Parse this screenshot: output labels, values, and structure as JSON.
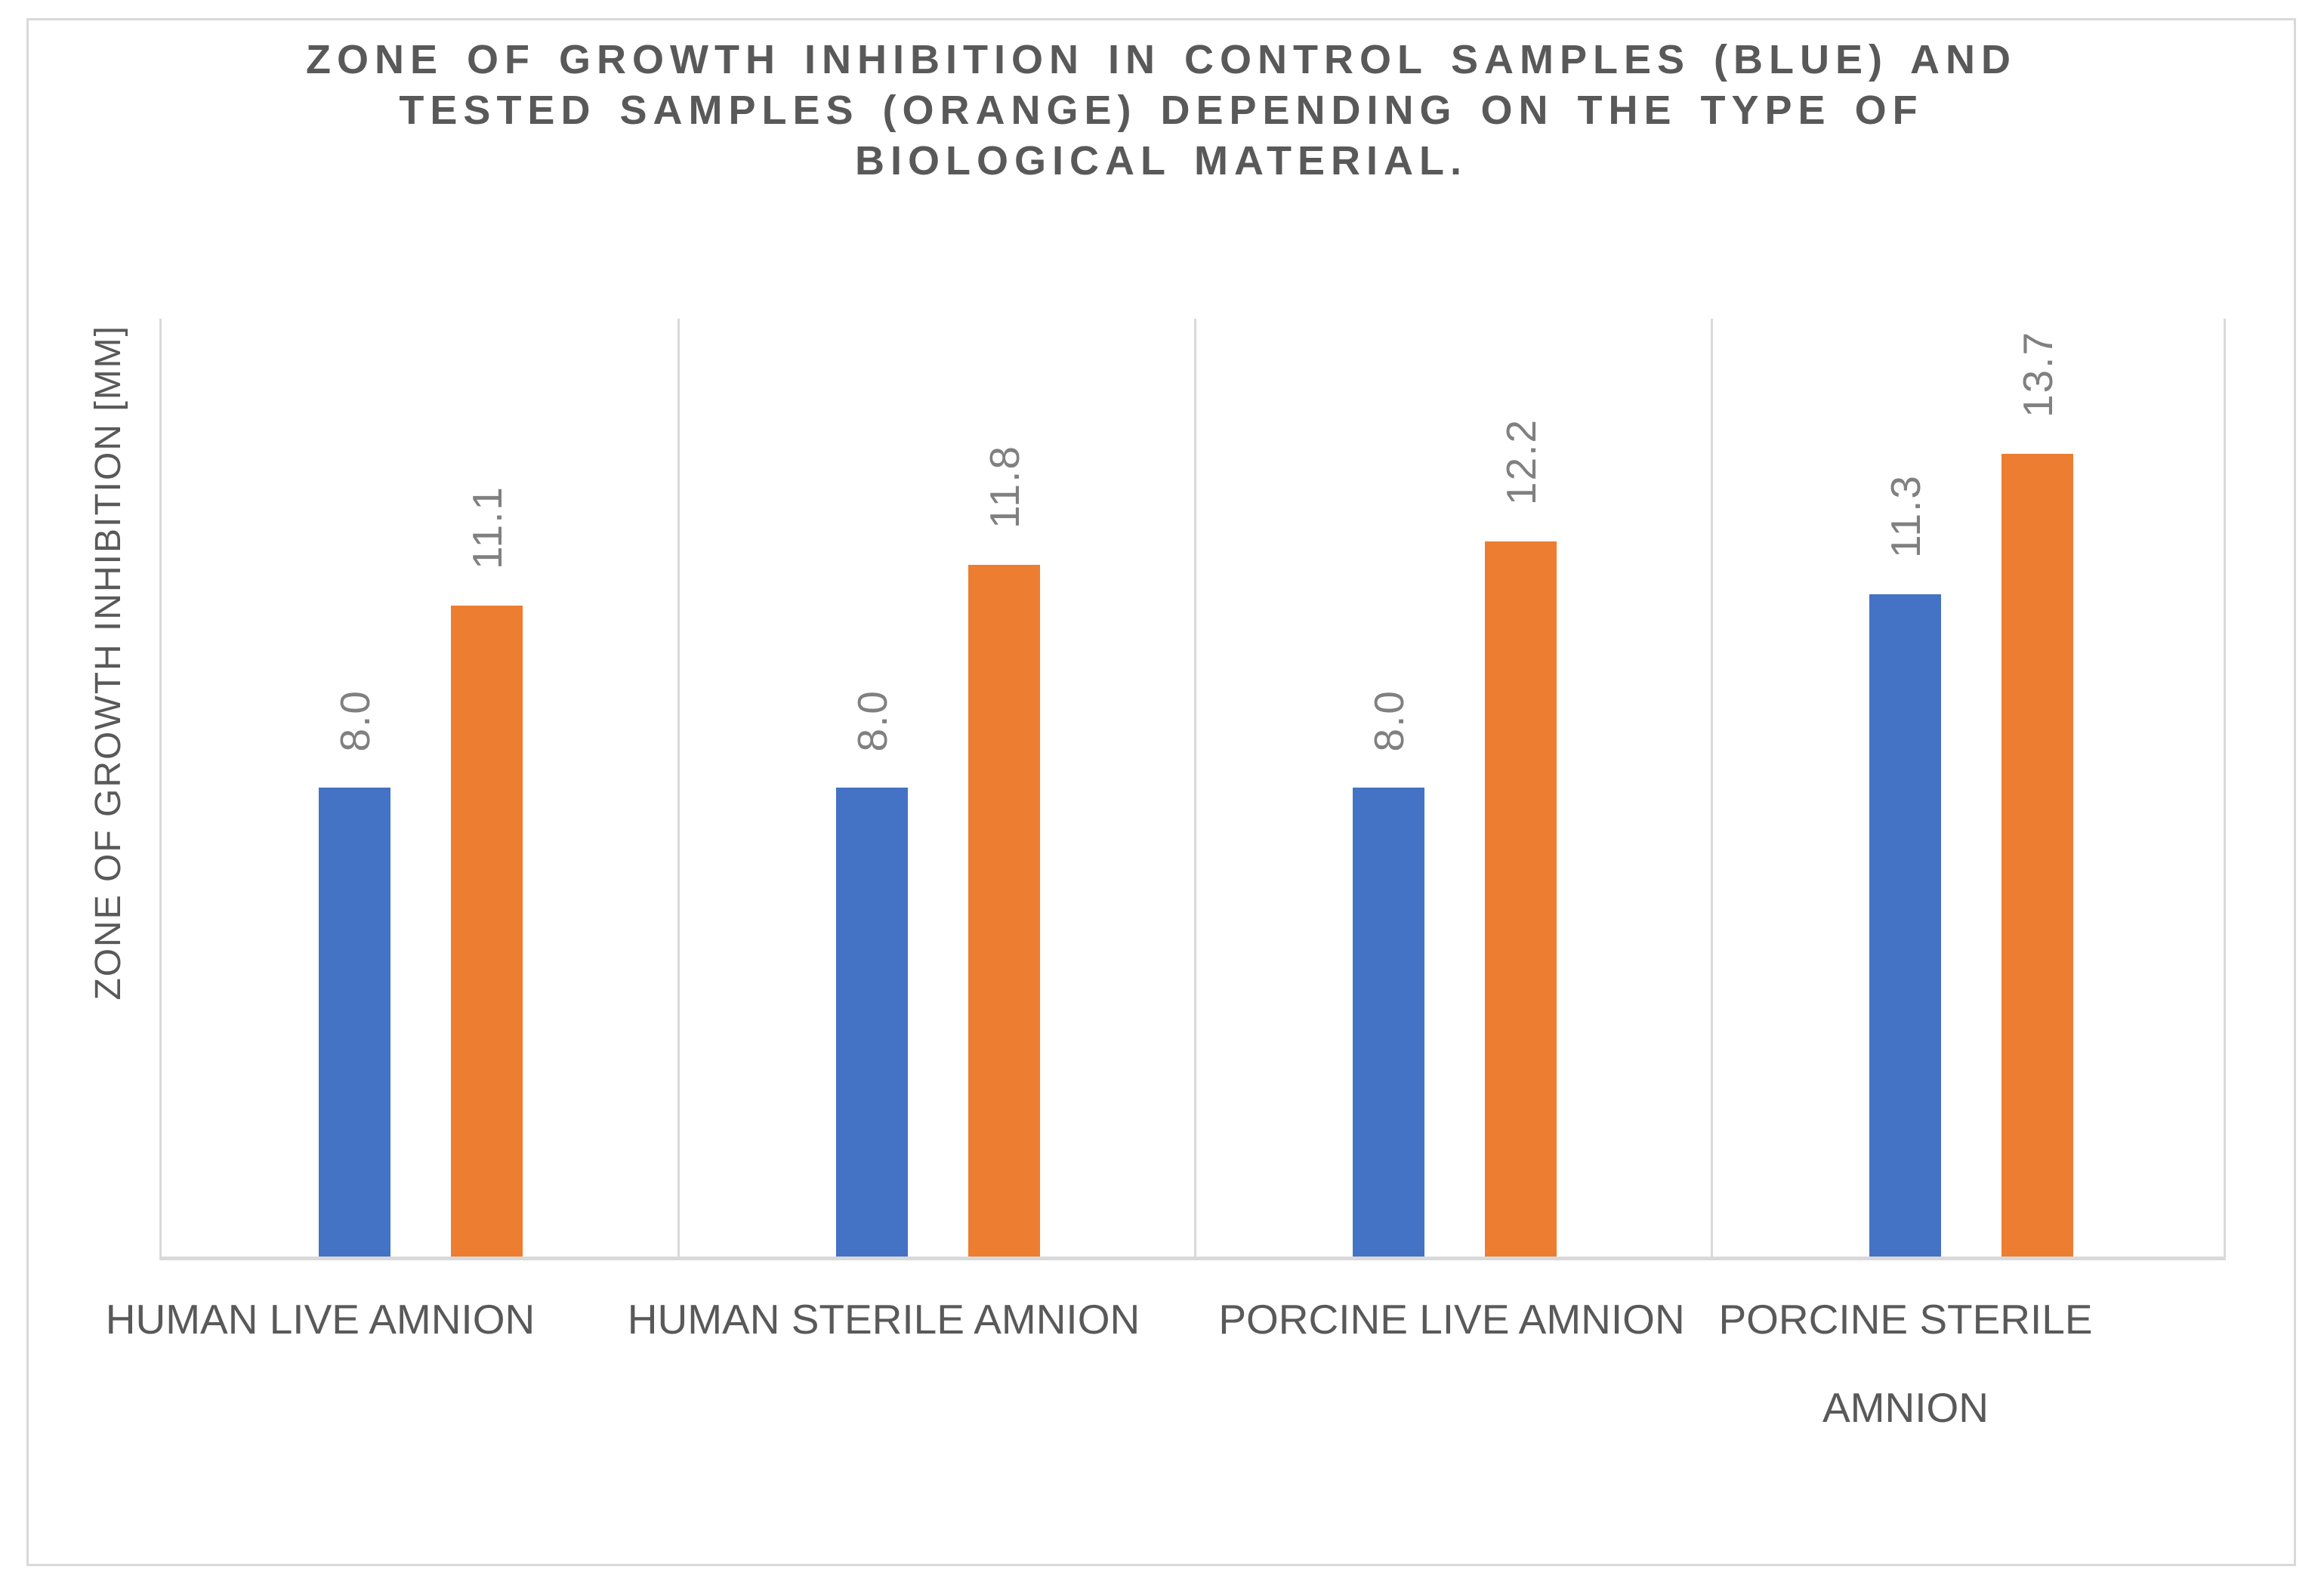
{
  "title": {
    "lines": [
      "ZONE OF GROWTH INHIBITION IN CONTROL SAMPLES (BLUE) AND",
      "TESTED SAMPLES (ORANGE) DEPENDING ON THE TYPE OF",
      "BIOLOGICAL MATERIAL."
    ]
  },
  "chart_data": {
    "type": "bar",
    "title": "ZONE OF GROWTH INHIBITION IN CONTROL SAMPLES (BLUE) AND TESTED SAMPLES (ORANGE) DEPENDING ON THE TYPE OF BIOLOGICAL MATERIAL.",
    "ylabel": "ZONE OF GROWTH INHIBITION [MM]",
    "xlabel": "",
    "ylim": [
      0,
      16
    ],
    "grid": false,
    "legend": "none (series identified by color in title)",
    "categories": [
      "HUMAN LIVE AMNION",
      "HUMAN STERILE AMNION",
      "PORCINE LIVE AMNION",
      "PORCINE STERILE AMNION"
    ],
    "category_lines": [
      [
        "HUMAN LIVE AMNION"
      ],
      [
        "HUMAN STERILE AMNION"
      ],
      [
        "PORCINE LIVE AMNION"
      ],
      [
        "PORCINE STERILE",
        "AMNION"
      ]
    ],
    "series": [
      {
        "name": "Control samples (blue)",
        "color": "#4472C4",
        "values": [
          8.0,
          8.0,
          8.0,
          11.3
        ],
        "labels": [
          "8.0",
          "8.0",
          "8.0",
          "11.3"
        ]
      },
      {
        "name": "Tested samples (orange)",
        "color": "#ED7D31",
        "values": [
          11.1,
          11.8,
          12.2,
          13.7
        ],
        "labels": [
          "11.1",
          "11.8",
          "12.2",
          "13.7"
        ]
      }
    ],
    "value_label_rotation": "vertical, reading bottom-to-top",
    "category_axis_line_color": "#D9D9D9"
  },
  "colors": {
    "control_blue": "#4472C4",
    "tested_orange": "#ED7D31",
    "grid_gray": "#D9D9D9",
    "title_gray": "#595959",
    "data_label_gray": "#808080",
    "background": "#FFFFFF"
  }
}
